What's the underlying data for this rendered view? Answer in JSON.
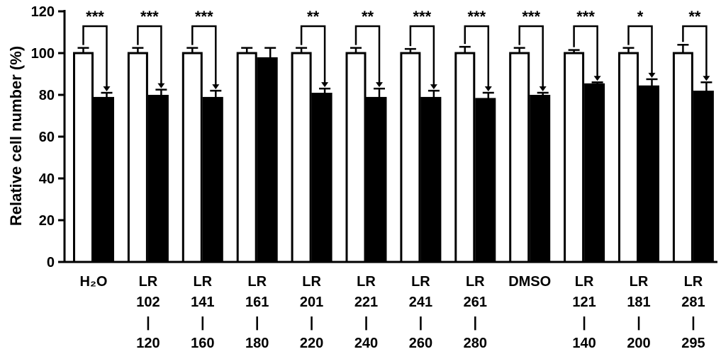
{
  "chart_data": {
    "type": "bar",
    "title": "",
    "xlabel": "",
    "ylabel": "Relative cell number (%)",
    "ylim": [
      0,
      120
    ],
    "yticks": [
      0,
      20,
      40,
      60,
      80,
      100,
      120
    ],
    "grid": false,
    "legend": "none",
    "categories": [
      [
        "H₂O"
      ],
      [
        "LR",
        "102",
        "|",
        "120"
      ],
      [
        "LR",
        "141",
        "|",
        "160"
      ],
      [
        "LR",
        "161",
        "|",
        "180"
      ],
      [
        "LR",
        "201",
        "|",
        "220"
      ],
      [
        "LR",
        "221",
        "|",
        "240"
      ],
      [
        "LR",
        "241",
        "|",
        "260"
      ],
      [
        "LR",
        "261",
        "|",
        "280"
      ],
      [
        "DMSO"
      ],
      [
        "LR",
        "121",
        "|",
        "140"
      ],
      [
        "LR",
        "181",
        "|",
        "200"
      ],
      [
        "LR",
        "281",
        "|",
        "295"
      ]
    ],
    "series": [
      {
        "fill": "#ffffff",
        "values": [
          100,
          100,
          100,
          100,
          100,
          100,
          100,
          100,
          100,
          100,
          100,
          100
        ],
        "errors": [
          2.5,
          2.5,
          2.5,
          2.5,
          2.5,
          2.5,
          2,
          3,
          2.5,
          1.5,
          2.5,
          4
        ]
      },
      {
        "fill": "#000000",
        "values": [
          78.5,
          79.5,
          78.5,
          97.5,
          80.5,
          78.5,
          78.5,
          78,
          79.5,
          85,
          84,
          81.5
        ],
        "errors": [
          2.5,
          3,
          3.5,
          5,
          2.5,
          4.5,
          3.5,
          3,
          1.5,
          1,
          3.5,
          4.5
        ]
      }
    ],
    "significance": [
      "***",
      "***",
      "***",
      "",
      "**",
      "**",
      "***",
      "***",
      "***",
      "***",
      "*",
      "**"
    ]
  }
}
